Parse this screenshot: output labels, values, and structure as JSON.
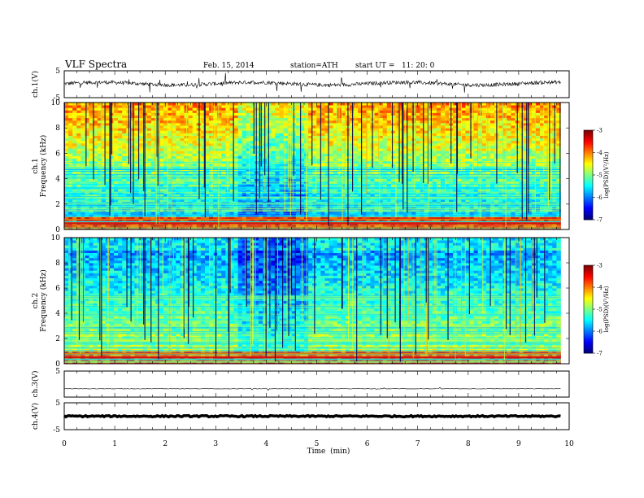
{
  "header": {
    "title": "VLF Spectra",
    "date": "Feb. 15, 2014",
    "station": "station=ATH",
    "start": "start UT =   11: 20: 0"
  },
  "chart_data": [
    {
      "type": "line",
      "name": "ch1-waveform",
      "ylabel": "ch.1(V)",
      "ylim": [
        -5,
        5
      ],
      "yticks": [
        "5",
        "-5"
      ],
      "xlim": [
        0,
        10
      ]
    },
    {
      "type": "heatmap",
      "name": "ch1-spectrogram",
      "ylabel_top": "ch.1",
      "ylabel": "Frequency (kHz)",
      "ylim": [
        0,
        10
      ],
      "yticks": [
        "0",
        "2",
        "4",
        "6",
        "8",
        "10"
      ],
      "xlim": [
        0,
        9.83
      ],
      "colorbar": {
        "label": "log(PSD)(V²/Hz)",
        "ticks": [
          "-3",
          "-4",
          "-5",
          "-6",
          "-7"
        ],
        "range": [
          -7,
          -3
        ]
      }
    },
    {
      "type": "heatmap",
      "name": "ch2-spectrogram",
      "ylabel_top": "ch.2",
      "ylabel": "Frequency (kHz)",
      "ylim": [
        0,
        10
      ],
      "yticks": [
        "0",
        "2",
        "4",
        "6",
        "8",
        "10"
      ],
      "xlim": [
        0,
        9.83
      ],
      "colorbar": {
        "label": "log(PSD)(V²/Hz)",
        "ticks": [
          "-3",
          "-4",
          "-5",
          "-6",
          "-7"
        ],
        "range": [
          -7,
          -3
        ]
      }
    },
    {
      "type": "line",
      "name": "ch3-waveform",
      "ylabel": "ch.3(V)",
      "ylim": [
        -5,
        5
      ],
      "yticks": [
        "5"
      ],
      "xlim": [
        0,
        10
      ]
    },
    {
      "type": "line",
      "name": "ch4-waveform",
      "ylabel": "ch.4(V)",
      "ylim": [
        -5,
        5
      ],
      "yticks": [
        "5",
        "-5"
      ],
      "xlim": [
        0,
        10
      ]
    }
  ],
  "x_axis": {
    "label": "Time  (min)",
    "ticks": [
      "0",
      "1",
      "2",
      "3",
      "4",
      "5",
      "6",
      "7",
      "8",
      "9",
      "10"
    ]
  },
  "colors": {
    "jet_low": "#000080",
    "jet_high": "#800000",
    "trace": "#000000"
  }
}
